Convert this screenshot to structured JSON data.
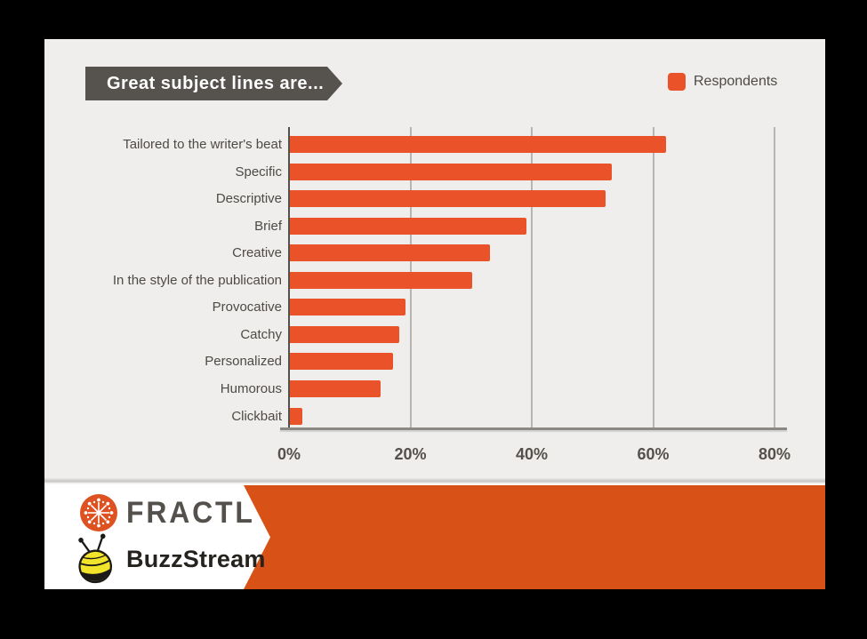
{
  "banner": {
    "title": "Great subject lines are..."
  },
  "legend": {
    "label": "Respondents"
  },
  "chart_data": {
    "type": "bar",
    "orientation": "horizontal",
    "title": "Great subject lines are...",
    "legend_entries": [
      "Respondents"
    ],
    "legend_position": "top-right",
    "categories": [
      "Tailored to the writer's beat",
      "Specific",
      "Descriptive",
      "Brief",
      "Creative",
      "In the style of the publication",
      "Provocative",
      "Catchy",
      "Personalized",
      "Humorous",
      "Clickbait"
    ],
    "series": [
      {
        "name": "Respondents",
        "values": [
          62,
          53,
          52,
          39,
          33,
          30,
          19,
          18,
          17,
          15,
          2
        ]
      }
    ],
    "xlabel": "",
    "ylabel": "",
    "x_ticks": [
      0,
      20,
      40,
      60,
      80
    ],
    "x_tick_labels": [
      "0%",
      "20%",
      "40%",
      "60%",
      "80%"
    ],
    "xlim": [
      0,
      82
    ],
    "grid": true,
    "bar_color": "#ea5329"
  },
  "footer": {
    "fractl_label": "FRACTL",
    "buzzstream_label": "BuzzStream"
  },
  "colors": {
    "bar_orange": "#ea5329",
    "footer_band_orange": "#d85217",
    "banner_dark_gray": "#56524e",
    "card_background": "#efeeec",
    "page_background": "#000000",
    "fractl_icon_orange": "#de5120",
    "bee_yellow": "#f2e32b",
    "label_gray": "#4e4a46"
  }
}
